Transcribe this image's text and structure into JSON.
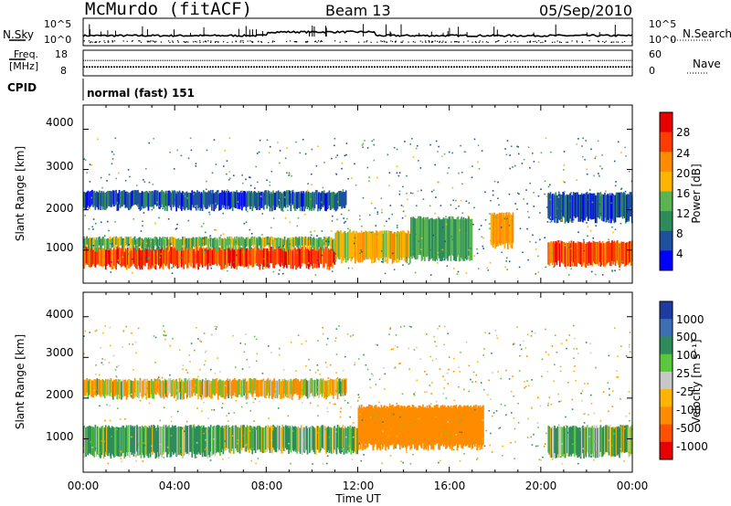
{
  "header": {
    "station": "McMurdo (fitACF)",
    "beam": "Beam 13",
    "date": "05/Sep/2010"
  },
  "noise_panel": {
    "left_label": "N.Sky",
    "right_label": "N.Search",
    "left_ticks": [
      "10^5",
      "10^0"
    ],
    "right_ticks": [
      "10^5",
      "10^0"
    ]
  },
  "freq_panel": {
    "left_label_line1": "Freq.",
    "left_label_line2": "[MHz]",
    "right_label": "Nave",
    "left_ticks": [
      "18",
      "8"
    ],
    "right_ticks": [
      "60",
      "0"
    ],
    "frequency_mhz": 11.5,
    "nave": 36
  },
  "cpid": {
    "label": "CPID",
    "value": "normal (fast) 151"
  },
  "power_panel": {
    "ylabel": "Slant Range [km]",
    "yticks": [
      "4000",
      "3000",
      "2000",
      "1000"
    ],
    "colorbar_label": "Power [dB]",
    "colorbar_ticks": [
      "28",
      "24",
      "20",
      "16",
      "12",
      "8",
      "4"
    ],
    "colorbar_colors": [
      "#e60000",
      "#ff3c00",
      "#ff8c00",
      "#ffb400",
      "#5ab452",
      "#2d8c5a",
      "#1e50a0",
      "#0000ff"
    ]
  },
  "velocity_panel": {
    "ylabel": "Slant Range [km]",
    "yticks": [
      "4000",
      "3000",
      "2000",
      "1000"
    ],
    "colorbar_label": "Velocity [m s⁻¹]",
    "colorbar_ticks": [
      "1000",
      "500",
      "100",
      "25",
      "-25",
      "-100",
      "-500",
      "-1000"
    ],
    "colorbar_colors": [
      "#1e3ca0",
      "#3c6eb4",
      "#2d8c5a",
      "#5ac83c",
      "#c8c8c8",
      "#ffb400",
      "#ff8c00",
      "#ff5000",
      "#e60000"
    ]
  },
  "xaxis": {
    "label": "Time UT",
    "ticks": [
      "00:00",
      "04:00",
      "08:00",
      "12:00",
      "16:00",
      "20:00",
      "00:00"
    ]
  },
  "chart_data": [
    {
      "type": "heatmap",
      "title": "Power",
      "xlabel": "Time UT",
      "ylabel": "Slant Range [km]",
      "xlim": [
        0,
        24
      ],
      "ylim": [
        180,
        4600
      ],
      "colorbar": {
        "label": "Power [dB]",
        "range": [
          0,
          32
        ]
      },
      "regions": [
        {
          "t_start": 0.0,
          "t_end": 11.0,
          "r_low": 600,
          "r_high": 1050,
          "value": 26
        },
        {
          "t_start": 0.0,
          "t_end": 11.0,
          "r_low": 1050,
          "r_high": 1300,
          "value": 14
        },
        {
          "t_start": 11.0,
          "t_end": 14.3,
          "r_low": 750,
          "r_high": 1450,
          "value": 18
        },
        {
          "t_start": 14.3,
          "t_end": 17.0,
          "r_low": 800,
          "r_high": 1800,
          "value": 12
        },
        {
          "t_start": 17.8,
          "t_end": 18.8,
          "r_low": 1100,
          "r_high": 1900,
          "value": 20
        },
        {
          "t_start": 20.3,
          "t_end": 24.0,
          "r_low": 650,
          "r_high": 1200,
          "value": 26
        },
        {
          "t_start": 0.0,
          "t_end": 11.5,
          "r_low": 2050,
          "r_high": 2450,
          "value": 6
        },
        {
          "t_start": 20.3,
          "t_end": 24.0,
          "r_low": 1750,
          "r_high": 2400,
          "value": 6
        }
      ]
    },
    {
      "type": "heatmap",
      "title": "Velocity",
      "xlabel": "Time UT",
      "ylabel": "Slant Range [km]",
      "xlim": [
        0,
        24
      ],
      "ylim": [
        180,
        4600
      ],
      "colorbar": {
        "label": "Velocity [m s⁻¹]",
        "range": [
          -1000,
          1000
        ]
      },
      "regions": [
        {
          "t_start": 0.0,
          "t_end": 6.0,
          "r_low": 600,
          "r_high": 1300,
          "value": 150
        },
        {
          "t_start": 6.0,
          "t_end": 12.0,
          "r_low": 700,
          "r_high": 1300,
          "value": 80
        },
        {
          "t_start": 12.0,
          "t_end": 17.5,
          "r_low": 800,
          "r_high": 1800,
          "value": -300
        },
        {
          "t_start": 20.3,
          "t_end": 24.0,
          "r_low": 600,
          "r_high": 1300,
          "value": 100
        },
        {
          "t_start": 0.0,
          "t_end": 11.5,
          "r_low": 2050,
          "r_high": 2450,
          "value": -50
        }
      ]
    }
  ]
}
